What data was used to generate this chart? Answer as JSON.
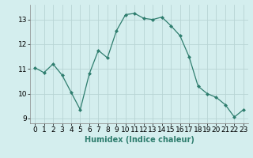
{
  "x": [
    0,
    1,
    2,
    3,
    4,
    5,
    6,
    7,
    8,
    9,
    10,
    11,
    12,
    13,
    14,
    15,
    16,
    17,
    18,
    19,
    20,
    21,
    22,
    23
  ],
  "y": [
    11.05,
    10.85,
    11.2,
    10.75,
    10.05,
    9.35,
    10.8,
    11.75,
    11.45,
    12.55,
    13.2,
    13.25,
    13.05,
    13.0,
    13.1,
    12.75,
    12.35,
    11.5,
    10.3,
    10.0,
    9.85,
    9.55,
    9.05,
    9.35
  ],
  "line_color": "#2e7d6e",
  "marker": "D",
  "marker_size": 2,
  "bg_color": "#d4eeee",
  "grid_color": "#b8d4d4",
  "xlabel": "Humidex (Indice chaleur)",
  "ylim": [
    8.8,
    13.6
  ],
  "xlim": [
    -0.5,
    23.5
  ],
  "yticks": [
    9,
    10,
    11,
    12,
    13
  ],
  "xticks": [
    0,
    1,
    2,
    3,
    4,
    5,
    6,
    7,
    8,
    9,
    10,
    11,
    12,
    13,
    14,
    15,
    16,
    17,
    18,
    19,
    20,
    21,
    22,
    23
  ],
  "xlabel_fontsize": 7,
  "tick_fontsize": 6.5
}
